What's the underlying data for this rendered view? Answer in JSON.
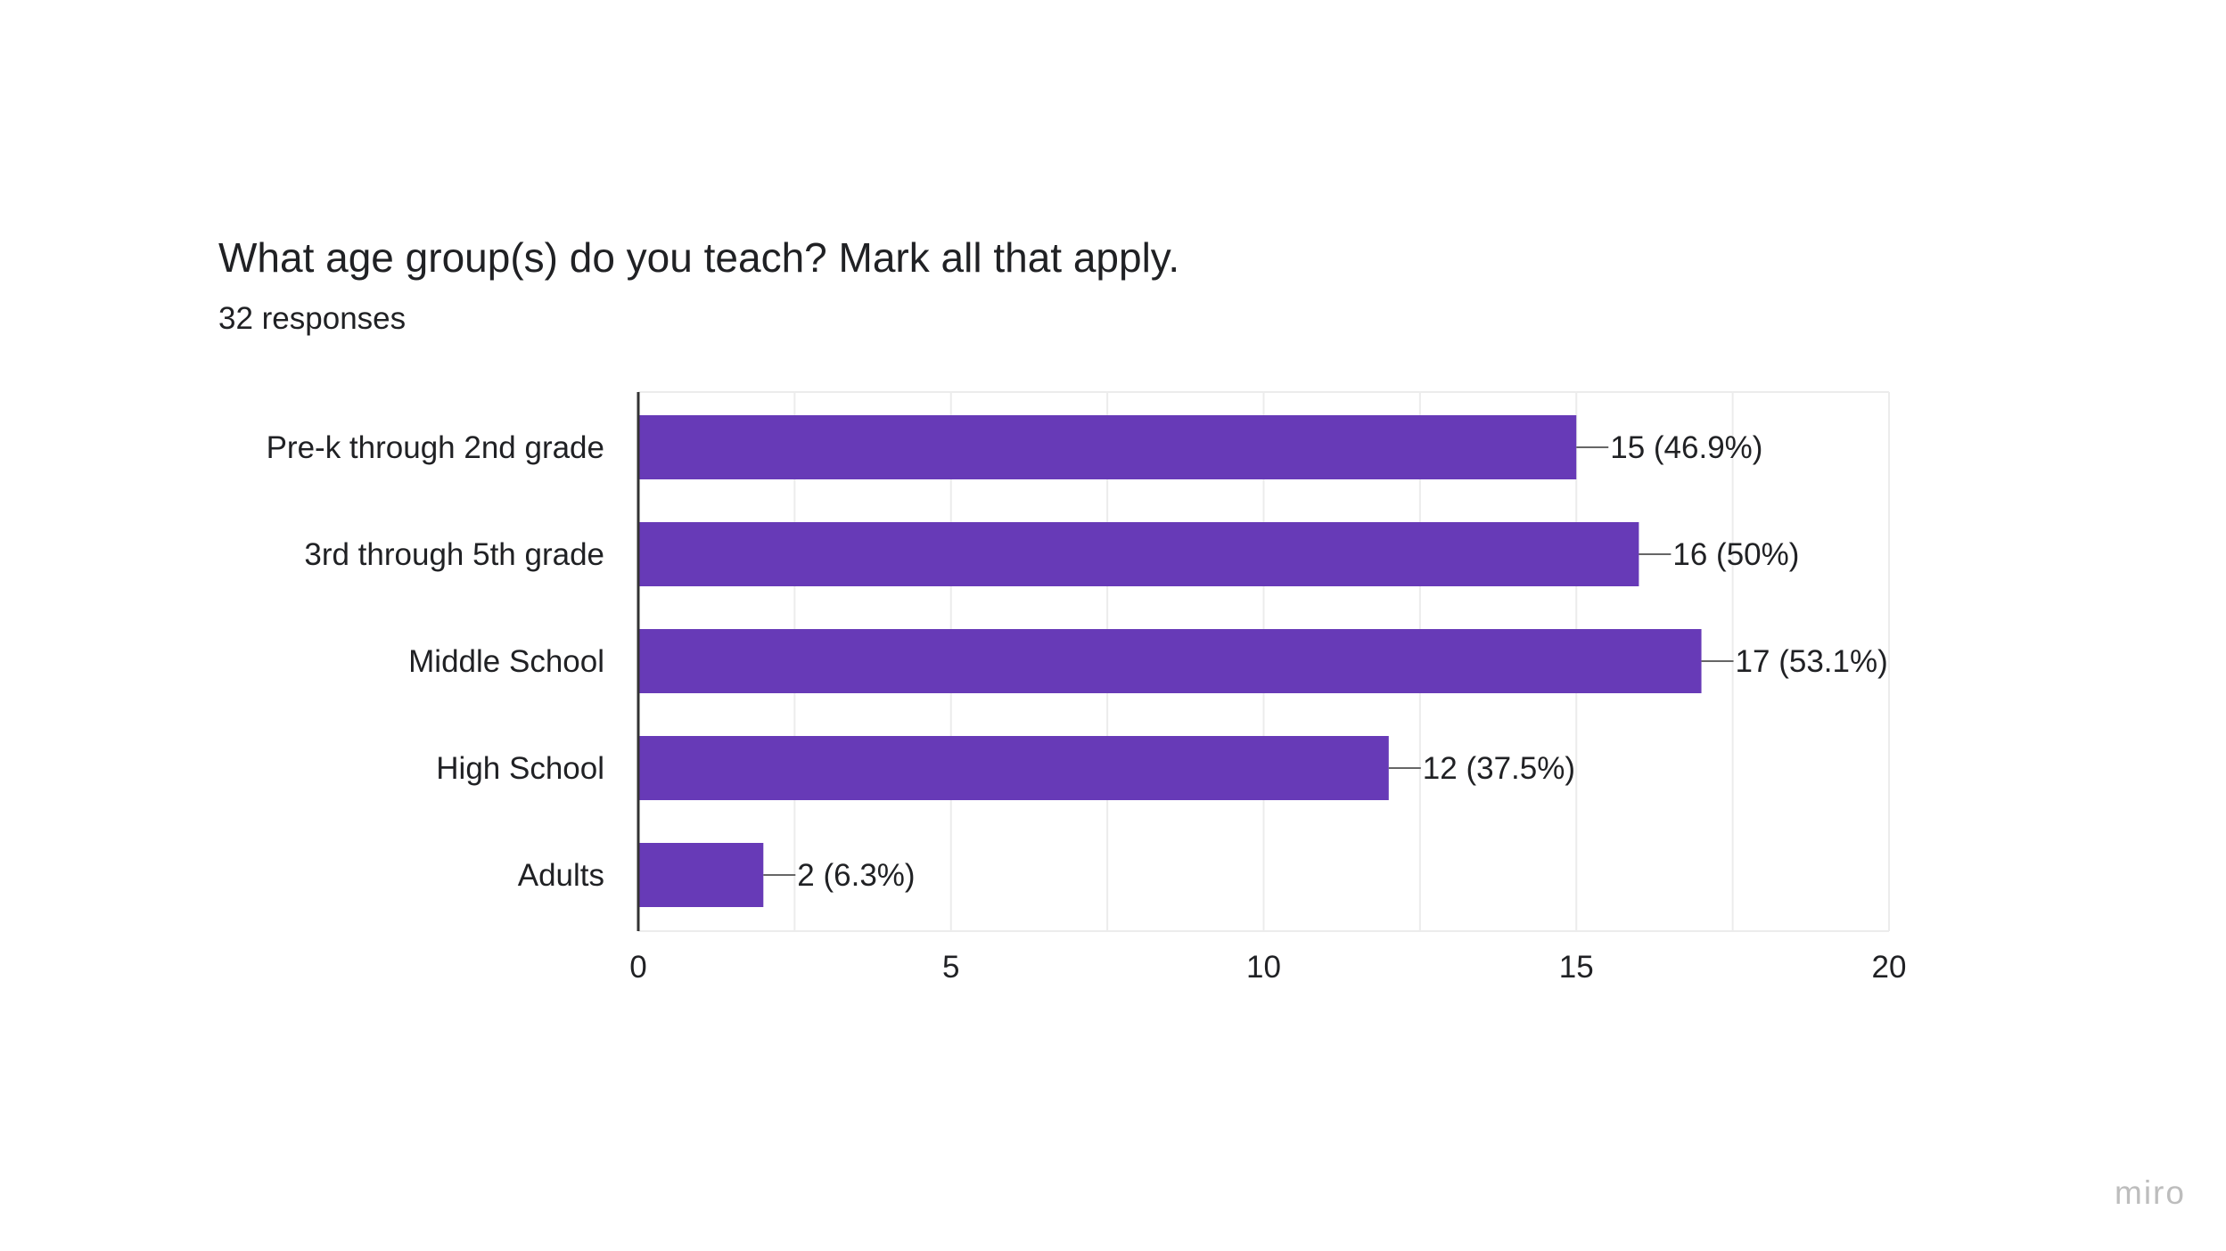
{
  "title": "What age group(s) do you teach? Mark all that apply.",
  "subtitle": "32 responses",
  "watermark": "miro",
  "colors": {
    "bar": "#673AB7",
    "grid": "#ececec",
    "axis": "#333333",
    "text": "#202124",
    "watermark": "#bdbdbd"
  },
  "chart_data": {
    "type": "bar",
    "orientation": "horizontal",
    "categories": [
      "Pre-k through 2nd grade",
      "3rd through 5th grade",
      "Middle School",
      "High School",
      "Adults"
    ],
    "values": [
      15,
      16,
      17,
      12,
      2
    ],
    "data_labels": [
      "15 (46.9%)",
      "16 (50%)",
      "17 (53.1%)",
      "12 (37.5%)",
      "2 (6.3%)"
    ],
    "xlim": [
      0,
      20
    ],
    "xticks": [
      0,
      5,
      10,
      15,
      20
    ],
    "grid": true,
    "legend": "none"
  }
}
